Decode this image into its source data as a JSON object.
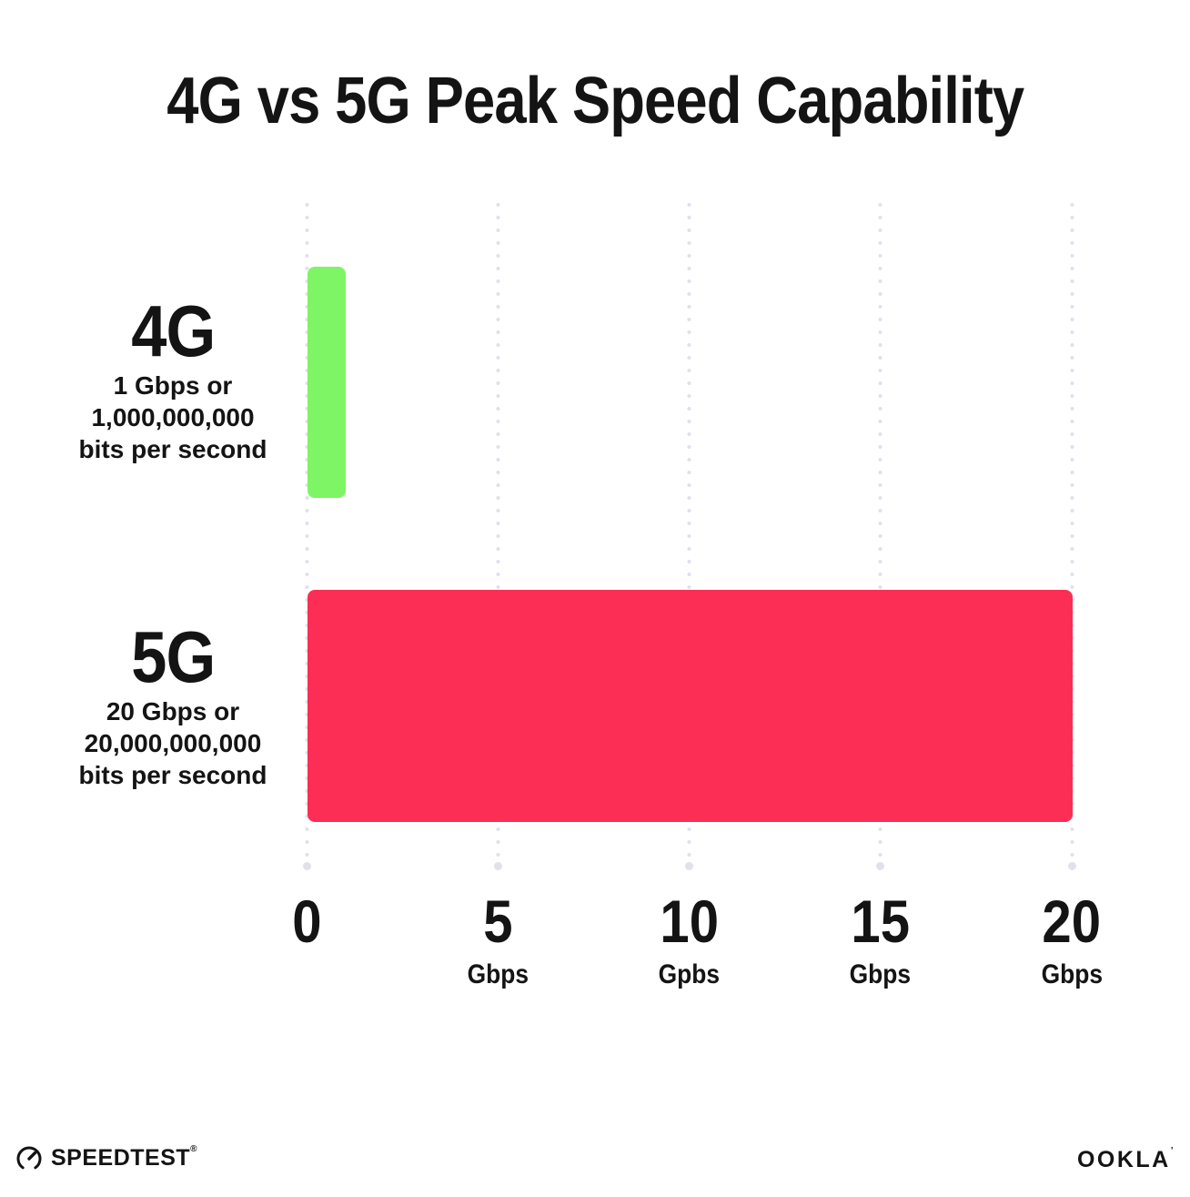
{
  "title": "4G vs 5G Peak Speed Capability",
  "chart_data": {
    "type": "bar",
    "orientation": "horizontal",
    "title": "4G vs 5G Peak Speed Capability",
    "xlabel": "",
    "ylabel": "",
    "xlim": [
      0,
      20
    ],
    "grid": "vertical-dotted",
    "legend_position": "none",
    "categories": [
      "4G",
      "5G"
    ],
    "values": [
      1,
      20
    ],
    "series": [
      {
        "name": "4G",
        "value": 1,
        "color": "#7DF564",
        "sublabel_lines": [
          "1 Gbps or",
          "1,000,000,000",
          "bits per second"
        ]
      },
      {
        "name": "5G",
        "value": 20,
        "color": "#FC2E56",
        "sublabel_lines": [
          "20 Gbps or",
          "20,000,000,000",
          "bits per second"
        ]
      }
    ],
    "x_ticks": [
      {
        "value": 0,
        "label": "0",
        "unit": ""
      },
      {
        "value": 5,
        "label": "5",
        "unit": "Gbps"
      },
      {
        "value": 10,
        "label": "10",
        "unit": "Gpbs"
      },
      {
        "value": 15,
        "label": "15",
        "unit": "Gbps"
      },
      {
        "value": 20,
        "label": "20",
        "unit": "Gbps"
      }
    ]
  },
  "footer": {
    "speedtest_wordmark": "SPEEDTEST",
    "speedtest_trademark": "®",
    "ookla_wordmark": "OOKLA",
    "ookla_trademark": "’"
  },
  "colors": {
    "bar_4g": "#7DF564",
    "bar_5g": "#FC2E56",
    "gridline": "#E1E1EC",
    "text": "#141414",
    "background": "#FFFFFF"
  }
}
